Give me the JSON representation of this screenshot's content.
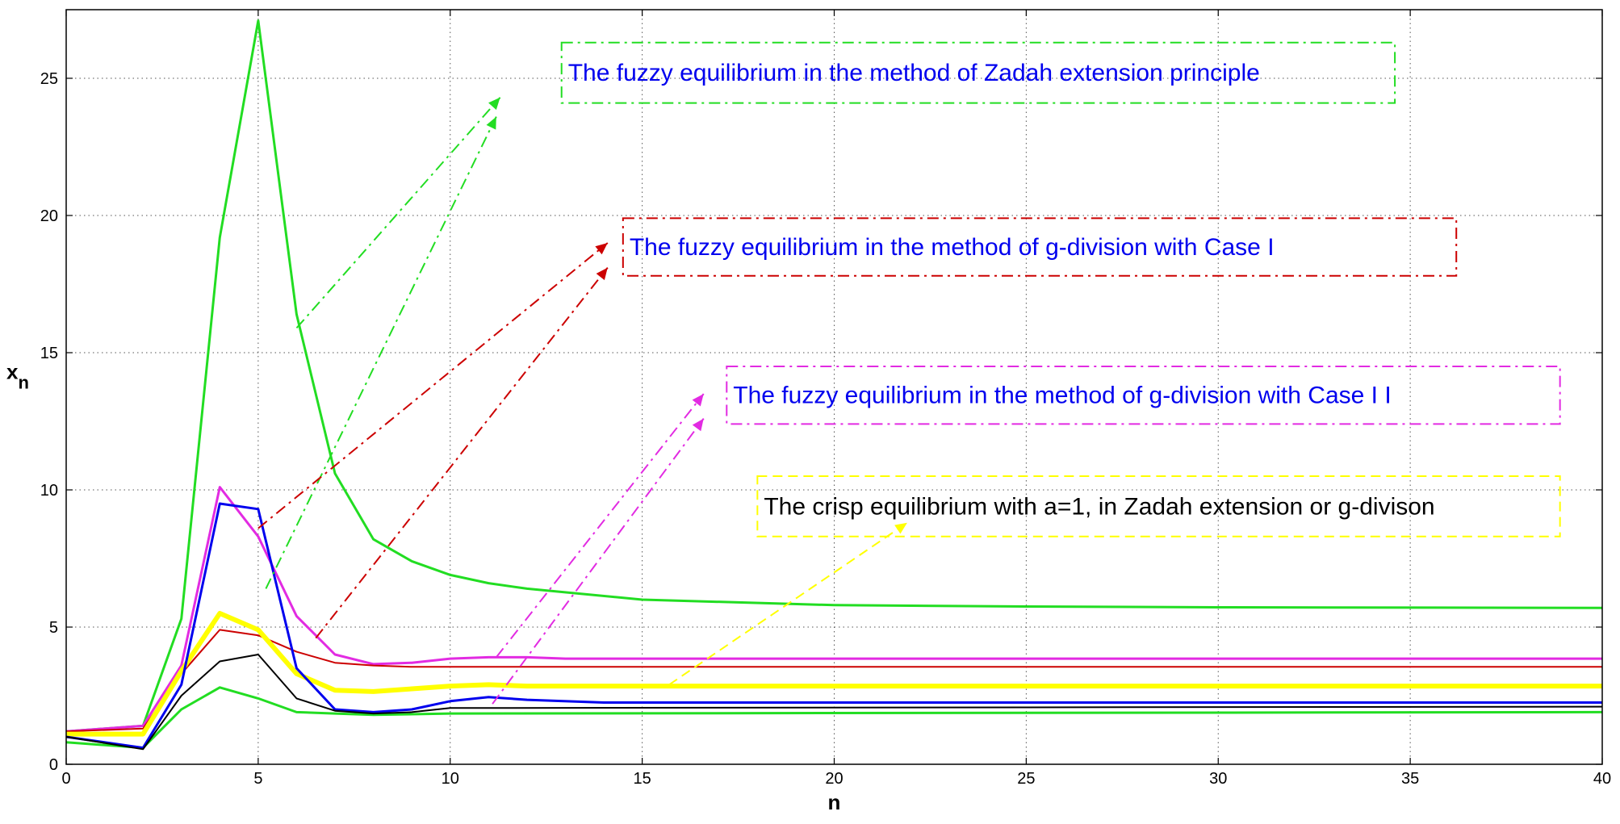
{
  "chart_data": {
    "type": "line",
    "xlabel": "n",
    "ylabel": "x",
    "ylabel_sub": "n",
    "xlim": [
      0,
      40
    ],
    "ylim": [
      0,
      27.5
    ],
    "xticks": [
      0,
      5,
      10,
      15,
      20,
      25,
      30,
      35,
      40
    ],
    "yticks": [
      0,
      5,
      10,
      15,
      20,
      25
    ],
    "grid": true,
    "colors": {
      "green": "#22dd22",
      "red": "#cc0000",
      "magenta": "#e22be2",
      "yellow": "#ffff00",
      "blue": "#0000ee",
      "black": "#000000"
    },
    "series": [
      {
        "color": "green",
        "x": [
          0,
          2,
          3,
          4,
          5,
          6,
          7,
          8,
          9,
          10,
          11,
          12,
          15,
          20,
          25,
          30,
          40
        ],
        "values": [
          1.2,
          1.4,
          5.3,
          19.2,
          27.1,
          16.4,
          10.6,
          8.2,
          7.4,
          6.9,
          6.6,
          6.4,
          6.0,
          5.8,
          5.75,
          5.72,
          5.7
        ]
      },
      {
        "color": "green",
        "x": [
          0,
          2,
          3,
          4,
          5,
          6,
          7,
          8,
          10,
          40
        ],
        "values": [
          0.8,
          0.6,
          2.0,
          2.8,
          2.4,
          1.9,
          1.85,
          1.8,
          1.85,
          1.9
        ]
      },
      {
        "color": "magenta",
        "x": [
          0,
          2,
          3,
          4,
          5,
          6,
          7,
          8,
          9,
          10,
          11,
          12,
          13,
          40
        ],
        "values": [
          1.2,
          1.4,
          3.6,
          10.1,
          8.3,
          5.4,
          4.0,
          3.65,
          3.7,
          3.85,
          3.9,
          3.9,
          3.85,
          3.85
        ]
      },
      {
        "color": "red",
        "x": [
          0,
          2,
          3,
          4,
          5,
          6,
          7,
          8,
          9,
          10,
          40
        ],
        "values": [
          1.2,
          1.3,
          3.3,
          4.9,
          4.7,
          4.1,
          3.7,
          3.6,
          3.55,
          3.55,
          3.55
        ]
      },
      {
        "color": "yellow",
        "x": [
          0,
          2,
          3,
          4,
          5,
          6,
          7,
          8,
          9,
          10,
          11,
          12,
          13,
          40
        ],
        "values": [
          1.1,
          1.1,
          3.4,
          5.5,
          4.9,
          3.3,
          2.7,
          2.65,
          2.75,
          2.85,
          2.9,
          2.85,
          2.85,
          2.85
        ]
      },
      {
        "color": "blue",
        "x": [
          0,
          2,
          3,
          4,
          5,
          6,
          7,
          8,
          9,
          10,
          11,
          12,
          14,
          16,
          40
        ],
        "values": [
          1.0,
          0.6,
          2.9,
          9.5,
          9.3,
          3.5,
          2.0,
          1.9,
          2.0,
          2.3,
          2.45,
          2.35,
          2.25,
          2.25,
          2.25
        ]
      },
      {
        "color": "black",
        "x": [
          0,
          2,
          3,
          4,
          5,
          6,
          7,
          8,
          9,
          10,
          40
        ],
        "values": [
          1.0,
          0.55,
          2.5,
          3.75,
          4.0,
          2.4,
          1.95,
          1.85,
          1.9,
          2.05,
          2.1
        ]
      }
    ],
    "annotations": [
      {
        "text": "The fuzzy equilibrium in the method of Zadah extension principle",
        "text_color": "blue",
        "box_color": "green",
        "dash": "dashdot",
        "box": {
          "x0": 12.9,
          "x1": 34.6,
          "y0": 24.1,
          "y1": 26.3
        },
        "arrows": [
          {
            "from": [
              6.0,
              15.9
            ],
            "to": [
              11.3,
              24.3
            ]
          },
          {
            "from": [
              5.2,
              6.4
            ],
            "to": [
              11.2,
              23.6
            ]
          }
        ]
      },
      {
        "text": "The fuzzy equilibrium in the method of g-division with Case I",
        "text_color": "blue",
        "box_color": "red",
        "dash": "dashdot",
        "box": {
          "x0": 14.5,
          "x1": 36.2,
          "y0": 17.8,
          "y1": 19.9
        },
        "arrows": [
          {
            "from": [
              5.0,
              8.6
            ],
            "to": [
              14.1,
              19.0
            ]
          },
          {
            "from": [
              6.5,
              4.6
            ],
            "to": [
              14.1,
              18.1
            ]
          }
        ]
      },
      {
        "text": "The fuzzy equilibrium in the method of g-division with Case I I",
        "text_color": "blue",
        "box_color": "magenta",
        "dash": "dashdot",
        "box": {
          "x0": 17.2,
          "x1": 38.9,
          "y0": 12.4,
          "y1": 14.5
        },
        "arrows": [
          {
            "from": [
              11.2,
              3.9
            ],
            "to": [
              16.6,
              13.5
            ]
          },
          {
            "from": [
              11.1,
              2.2
            ],
            "to": [
              16.6,
              12.6
            ]
          }
        ]
      },
      {
        "text": "The crisp equilibrium with a=1, in Zadah extension or g-divison",
        "text_color": "black",
        "box_color": "yellow",
        "dash": "dashed",
        "box": {
          "x0": 18.0,
          "x1": 38.9,
          "y0": 8.3,
          "y1": 10.5
        },
        "arrows": [
          {
            "from": [
              15.7,
              2.9
            ],
            "to": [
              21.9,
              8.8
            ]
          }
        ]
      }
    ]
  }
}
